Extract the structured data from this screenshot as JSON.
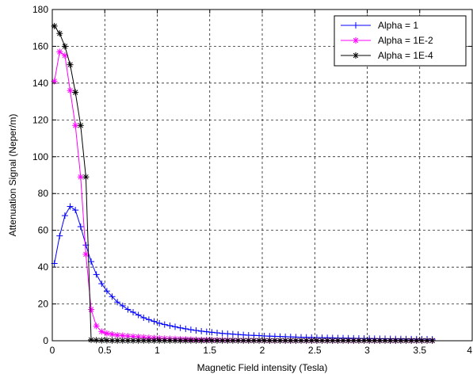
{
  "chart_data": {
    "type": "line",
    "title": "",
    "xlabel": "Magnetic Field intensity (Tesla)",
    "ylabel": "Attenuation Signal (Neper/m)",
    "xlim": [
      0,
      4
    ],
    "ylim": [
      0,
      180
    ],
    "x_ticks": [
      "0",
      "0.5",
      "1",
      "1.5",
      "2",
      "2.5",
      "3",
      "3.5",
      "4"
    ],
    "y_ticks": [
      "0",
      "20",
      "40",
      "60",
      "80",
      "100",
      "120",
      "140",
      "160",
      "180"
    ],
    "grid": true,
    "legend_position": "top-right",
    "series": [
      {
        "name": "Alpha = 1",
        "color": "#0000ff",
        "marker": "plus",
        "x": [
          0.02,
          0.07,
          0.12,
          0.17,
          0.22,
          0.27,
          0.32,
          0.37,
          0.42,
          0.47,
          0.52,
          0.57,
          0.62,
          0.67,
          0.72,
          0.77,
          0.82,
          0.87,
          0.92,
          0.97,
          1.02,
          1.07,
          1.12,
          1.17,
          1.22,
          1.27,
          1.32,
          1.37,
          1.42,
          1.47,
          1.52,
          1.57,
          1.62,
          1.67,
          1.72,
          1.77,
          1.82,
          1.87,
          1.92,
          1.97,
          2.02,
          2.07,
          2.12,
          2.17,
          2.22,
          2.27,
          2.32,
          2.37,
          2.42,
          2.47,
          2.52,
          2.57,
          2.62,
          2.67,
          2.72,
          2.77,
          2.82,
          2.87,
          2.92,
          2.97,
          3.02,
          3.07,
          3.12,
          3.17,
          3.22,
          3.27,
          3.32,
          3.37,
          3.42,
          3.47,
          3.52,
          3.57,
          3.62
        ],
        "y": [
          42,
          57,
          68,
          73,
          71,
          62,
          52,
          43,
          36,
          31,
          27,
          24,
          21,
          19,
          17,
          15.5,
          14,
          12.5,
          11.5,
          10.5,
          9.5,
          8.8,
          8.2,
          7.6,
          7.0,
          6.5,
          6.0,
          5.6,
          5.2,
          4.9,
          4.6,
          4.3,
          4.0,
          3.8,
          3.6,
          3.4,
          3.2,
          3.0,
          2.9,
          2.8,
          2.6,
          2.5,
          2.4,
          2.3,
          2.2,
          2.1,
          2.0,
          1.9,
          1.85,
          1.8,
          1.7,
          1.65,
          1.6,
          1.55,
          1.5,
          1.45,
          1.4,
          1.35,
          1.3,
          1.25,
          1.2,
          1.15,
          1.1,
          1.1,
          1.05,
          1.0,
          1.0,
          0.95,
          0.9,
          0.9,
          0.85,
          0.85,
          0.8
        ]
      },
      {
        "name": "Alpha = 1E-2",
        "color": "#ff00ff",
        "marker": "star",
        "x": [
          0.02,
          0.07,
          0.12,
          0.17,
          0.22,
          0.27,
          0.32,
          0.37,
          0.42,
          0.47,
          0.52,
          0.57,
          0.62,
          0.67,
          0.72,
          0.77,
          0.82,
          0.87,
          0.92,
          0.97,
          1.02,
          1.07,
          1.12,
          1.17,
          1.22,
          1.27,
          1.32,
          1.37,
          1.42,
          1.47,
          1.52,
          1.57,
          1.62,
          1.67,
          1.72,
          1.77,
          1.82,
          1.87,
          1.92,
          1.97,
          2.02,
          2.07,
          2.12,
          2.17,
          2.22,
          2.27,
          2.32,
          2.37,
          2.42,
          2.47,
          2.52,
          2.57,
          2.62,
          2.67,
          2.72,
          2.77,
          2.82,
          2.87,
          2.92,
          2.97,
          3.02,
          3.07,
          3.12,
          3.17,
          3.22,
          3.27,
          3.32,
          3.37,
          3.42,
          3.47,
          3.52,
          3.57,
          3.62
        ],
        "y": [
          141,
          157,
          155,
          136,
          117,
          89,
          47,
          17,
          8,
          5,
          4,
          3.5,
          3,
          2.8,
          2.5,
          2.3,
          2.1,
          1.9,
          1.7,
          1.5,
          1.3,
          1.2,
          1.1,
          1.0,
          0.9,
          0.8,
          0.7,
          0.6,
          0.5,
          0.5,
          0.4,
          0.4,
          0.35,
          0.3,
          0.3,
          0.25,
          0.2,
          0.2,
          0.2,
          0.15,
          0.15,
          0.1,
          0.1,
          0.1,
          0.1,
          0.1,
          0.1,
          0.1,
          0.1,
          0.1,
          0.1,
          0.1,
          0.1,
          0.1,
          0.1,
          0.1,
          0.1,
          0.1,
          0.1,
          0.1,
          0.1,
          0.1,
          0.1,
          0.1,
          0.1,
          0.1,
          0.1,
          0.1,
          0.1,
          0.1,
          0.1,
          0.1,
          0.1
        ]
      },
      {
        "name": "Alpha = 1E-4",
        "color": "#000000",
        "marker": "star",
        "x": [
          0.02,
          0.07,
          0.12,
          0.17,
          0.22,
          0.27,
          0.32,
          0.37,
          0.42,
          0.47,
          0.52,
          0.57,
          0.62,
          0.67,
          0.72,
          0.77,
          0.82,
          0.87,
          0.92,
          0.97,
          1.02,
          1.07,
          1.12,
          1.17,
          1.22,
          1.27,
          1.32,
          1.37,
          1.42,
          1.47,
          1.52,
          1.57,
          1.62,
          1.67,
          1.72,
          1.77,
          1.82,
          1.87,
          1.92,
          1.97,
          2.02,
          2.07,
          2.12,
          2.17,
          2.22,
          2.27,
          2.32,
          2.37,
          2.42,
          2.47,
          2.52,
          2.57,
          2.62,
          2.67,
          2.72,
          2.77,
          2.82,
          2.87,
          2.92,
          2.97,
          3.02,
          3.07,
          3.12,
          3.17,
          3.22,
          3.27,
          3.32,
          3.37,
          3.42,
          3.47,
          3.52,
          3.57,
          3.62
        ],
        "y": [
          171,
          167,
          160,
          150,
          135,
          117,
          89,
          0.5,
          0.3,
          0.2,
          0.2,
          0.1,
          0.1,
          0.1,
          0.1,
          0.1,
          0.1,
          0.1,
          0.1,
          0.1,
          0.1,
          0.1,
          0.1,
          0.1,
          0.1,
          0.1,
          0.1,
          0.1,
          0.1,
          0.1,
          0.1,
          0.1,
          0.1,
          0.1,
          0.1,
          0.1,
          0.1,
          0.1,
          0.1,
          0.1,
          0.1,
          0.1,
          0.1,
          0.1,
          0.1,
          0.1,
          0.1,
          0.1,
          0.1,
          0.1,
          0.1,
          0.1,
          0.1,
          0.1,
          0.1,
          0.1,
          0.1,
          0.1,
          0.1,
          0.1,
          0.1,
          0.1,
          0.1,
          0.1,
          0.1,
          0.1,
          0.1,
          0.1,
          0.1,
          0.1,
          0.1,
          0.1,
          0.1
        ]
      }
    ]
  }
}
